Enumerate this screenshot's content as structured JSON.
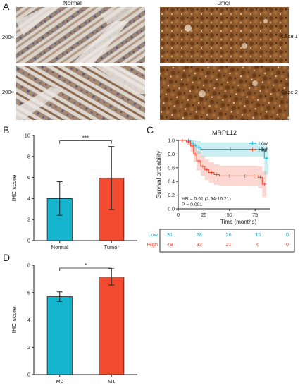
{
  "panels": {
    "a": {
      "label": "A",
      "col_normal": "Normal",
      "col_tumor": "Tumor",
      "row1_mag": "200×",
      "row2_mag": "200×",
      "row1_case": "Case 1",
      "row2_case": "Case 2"
    },
    "b": {
      "label": "B"
    },
    "c": {
      "label": "C"
    },
    "d": {
      "label": "D"
    }
  },
  "chart_data": [
    {
      "id": "B",
      "type": "bar",
      "categories": [
        "Normal",
        "Tumor"
      ],
      "values": [
        4.0,
        5.95
      ],
      "error": [
        1.6,
        3.0
      ],
      "colors": [
        "#15b5cf",
        "#f24a2e"
      ],
      "ylabel": "IHC score",
      "ylim": [
        0,
        10
      ],
      "yticks": [
        0,
        2,
        4,
        6,
        8,
        10
      ],
      "significance": "***"
    },
    {
      "id": "C",
      "type": "line",
      "title": "MRPL12",
      "xlabel": "Time (months)",
      "ylabel": "Survival probability",
      "xlim": [
        0,
        90
      ],
      "ylim": [
        0,
        1.0
      ],
      "xticks": [
        0,
        25,
        50,
        75
      ],
      "yticks": [
        "0.0",
        "0.2",
        "0.4",
        "0.6",
        "0.8",
        "1.0"
      ],
      "legend": [
        {
          "label": "Low",
          "color": "#15b5cf"
        },
        {
          "label": "High",
          "color": "#f24a2e"
        }
      ],
      "annotation_hr": "HR = 5.61 (1.94-16.21)",
      "annotation_p": "P = 0.001",
      "series": [
        {
          "name": "Low",
          "color": "#15b5cf",
          "x": [
            0,
            8,
            12,
            15,
            18,
            22,
            80,
            84,
            88
          ],
          "y": [
            1.0,
            1.0,
            0.96,
            0.93,
            0.9,
            0.87,
            0.87,
            0.74,
            0.74
          ],
          "ci_upper": [
            1.0,
            1.0,
            1.0,
            1.0,
            0.99,
            0.97,
            0.97,
            0.92,
            0.92
          ],
          "ci_lower": [
            1.0,
            1.0,
            0.9,
            0.84,
            0.8,
            0.76,
            0.76,
            0.5,
            0.5
          ]
        },
        {
          "name": "High",
          "color": "#f24a2e",
          "x": [
            0,
            8,
            12,
            15,
            18,
            22,
            26,
            30,
            35,
            40,
            60,
            70,
            78,
            82,
            86
          ],
          "y": [
            1.0,
            0.98,
            0.92,
            0.8,
            0.7,
            0.62,
            0.57,
            0.53,
            0.5,
            0.48,
            0.48,
            0.48,
            0.46,
            0.36,
            0.36
          ],
          "ci_upper": [
            1.0,
            1.0,
            1.0,
            0.92,
            0.84,
            0.77,
            0.72,
            0.68,
            0.65,
            0.63,
            0.63,
            0.63,
            0.62,
            0.55,
            0.55
          ],
          "ci_lower": [
            1.0,
            0.93,
            0.83,
            0.68,
            0.56,
            0.48,
            0.42,
            0.38,
            0.35,
            0.33,
            0.33,
            0.33,
            0.3,
            0.17,
            0.17
          ]
        }
      ],
      "risk_table": {
        "times": [
          0,
          25,
          50,
          75,
          100
        ],
        "rows": [
          {
            "label": "Low",
            "color": "#15b5cf",
            "values": [
              "31",
              "28",
              "26",
              "15",
              "0"
            ]
          },
          {
            "label": "High",
            "color": "#f24a2e",
            "values": [
              "49",
              "33",
              "21",
              "6",
              "0"
            ]
          }
        ]
      }
    },
    {
      "id": "D",
      "type": "bar",
      "categories": [
        "M0",
        "M1"
      ],
      "values": [
        5.7,
        7.15
      ],
      "error": [
        0.35,
        0.6
      ],
      "colors": [
        "#15b5cf",
        "#f24a2e"
      ],
      "ylabel": "IHC score",
      "ylim": [
        0,
        8
      ],
      "yticks": [
        0,
        2,
        4,
        6,
        8
      ],
      "significance": "*"
    }
  ]
}
